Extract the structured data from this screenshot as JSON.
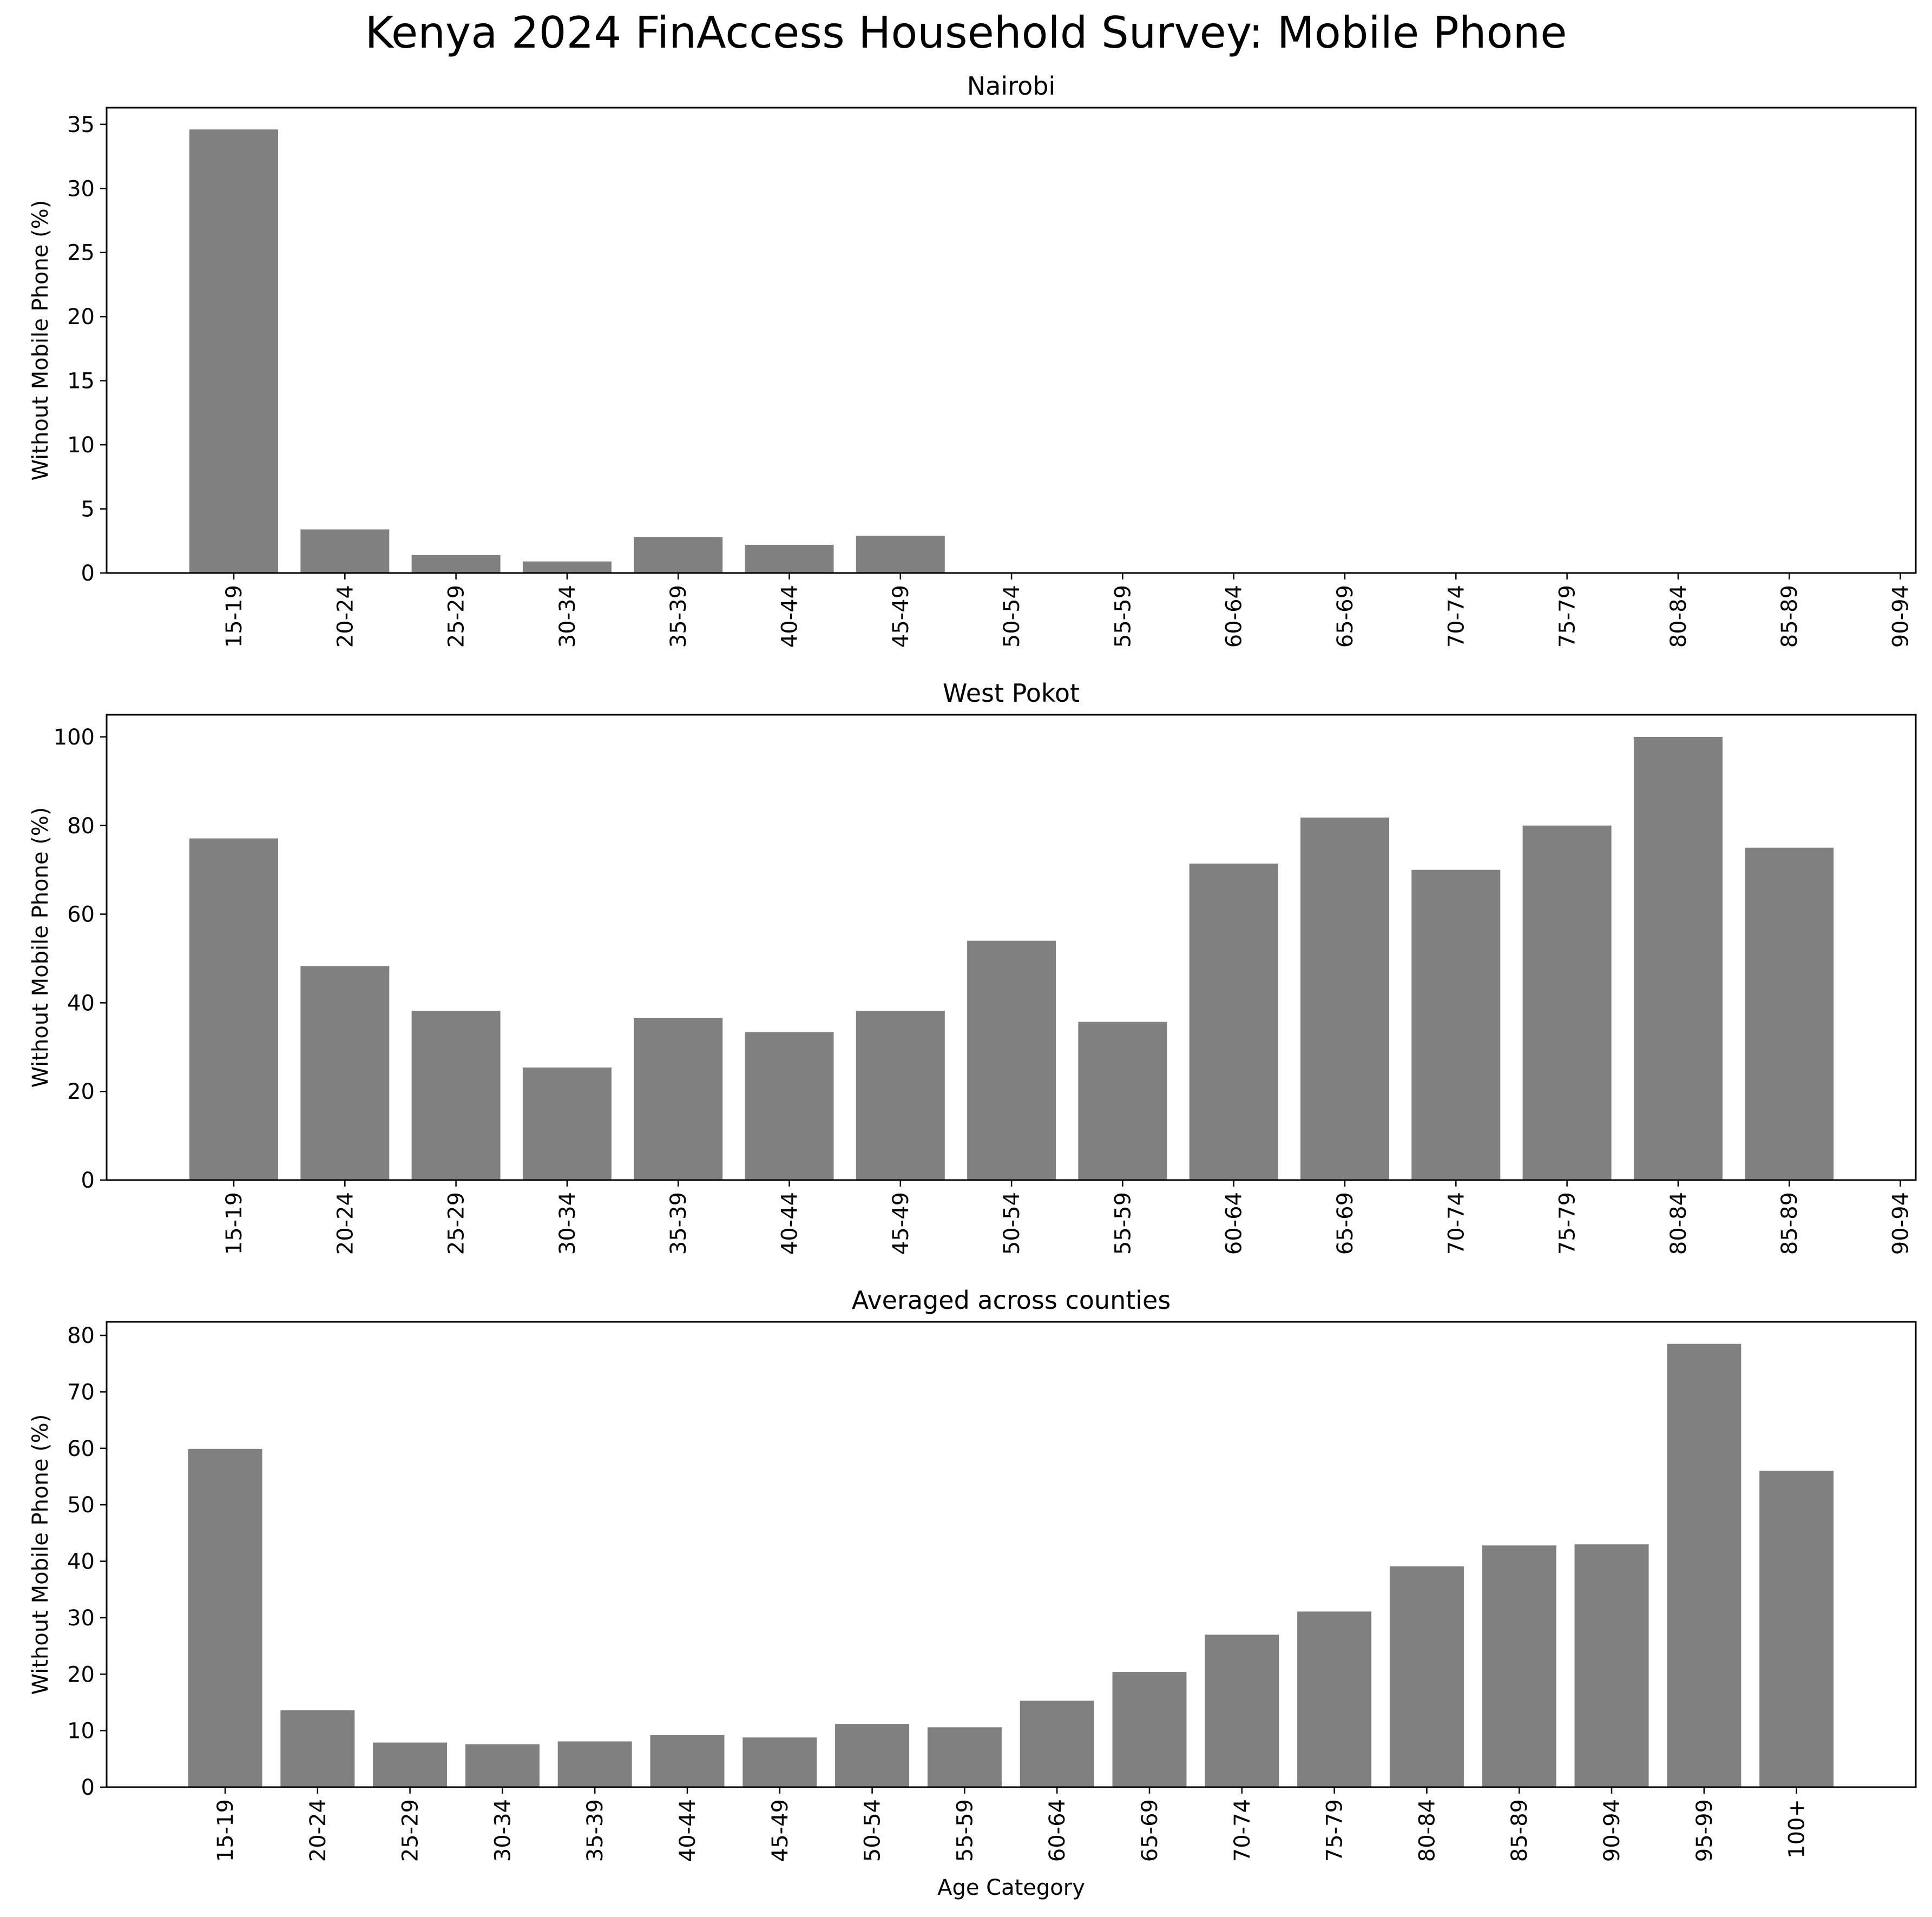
{
  "figure": {
    "title": "Kenya 2024 FinAccess Household Survey: Mobile Phone",
    "bar_color": "#808080",
    "axis_color": "#000000"
  },
  "chart_data": [
    {
      "type": "bar",
      "title": "Nairobi",
      "xlabel": "",
      "ylabel": "Without Mobile Phone (%)",
      "categories": [
        "15-19",
        "20-24",
        "25-29",
        "30-34",
        "35-39",
        "40-44",
        "45-49",
        "50-54",
        "55-59",
        "60-64",
        "65-69",
        "70-74",
        "75-79",
        "80-84",
        "85-89",
        "90-94"
      ],
      "values": [
        34.6,
        3.4,
        1.4,
        0.9,
        2.8,
        2.2,
        2.9,
        0,
        0,
        0,
        0,
        0,
        0,
        0,
        0,
        0
      ],
      "ylim": [
        0,
        36.3
      ],
      "yticks": [
        0,
        5,
        10,
        15,
        20,
        25,
        30,
        35
      ],
      "grid": false
    },
    {
      "type": "bar",
      "title": "West Pokot",
      "xlabel": "",
      "ylabel": "Without Mobile Phone (%)",
      "categories": [
        "15-19",
        "20-24",
        "25-29",
        "30-34",
        "35-39",
        "40-44",
        "45-49",
        "50-54",
        "55-59",
        "60-64",
        "65-69",
        "70-74",
        "75-79",
        "80-84",
        "85-89",
        "90-94"
      ],
      "values": [
        77.1,
        48.3,
        38.2,
        25.4,
        36.6,
        33.4,
        38.2,
        54.0,
        35.7,
        71.4,
        81.8,
        70.0,
        80.0,
        100.0,
        75.0,
        0
      ],
      "ylim": [
        0,
        105
      ],
      "yticks": [
        0,
        20,
        40,
        60,
        80,
        100
      ],
      "grid": false
    },
    {
      "type": "bar",
      "title": "Averaged across counties",
      "xlabel": "Age Category",
      "ylabel": "Without Mobile Phone (%)",
      "categories": [
        "15-19",
        "20-24",
        "25-29",
        "30-34",
        "35-39",
        "40-44",
        "45-49",
        "50-54",
        "55-59",
        "60-64",
        "65-69",
        "70-74",
        "75-79",
        "80-84",
        "85-89",
        "90-94",
        "95-99",
        "100+"
      ],
      "values": [
        59.9,
        13.6,
        7.9,
        7.6,
        8.1,
        9.2,
        8.8,
        11.2,
        10.6,
        15.3,
        20.4,
        27.0,
        31.1,
        39.1,
        42.8,
        43.0,
        78.5,
        56.0
      ],
      "ylim": [
        0,
        82.4
      ],
      "yticks": [
        0,
        10,
        20,
        30,
        40,
        50,
        60,
        70,
        80
      ],
      "grid": false
    }
  ]
}
